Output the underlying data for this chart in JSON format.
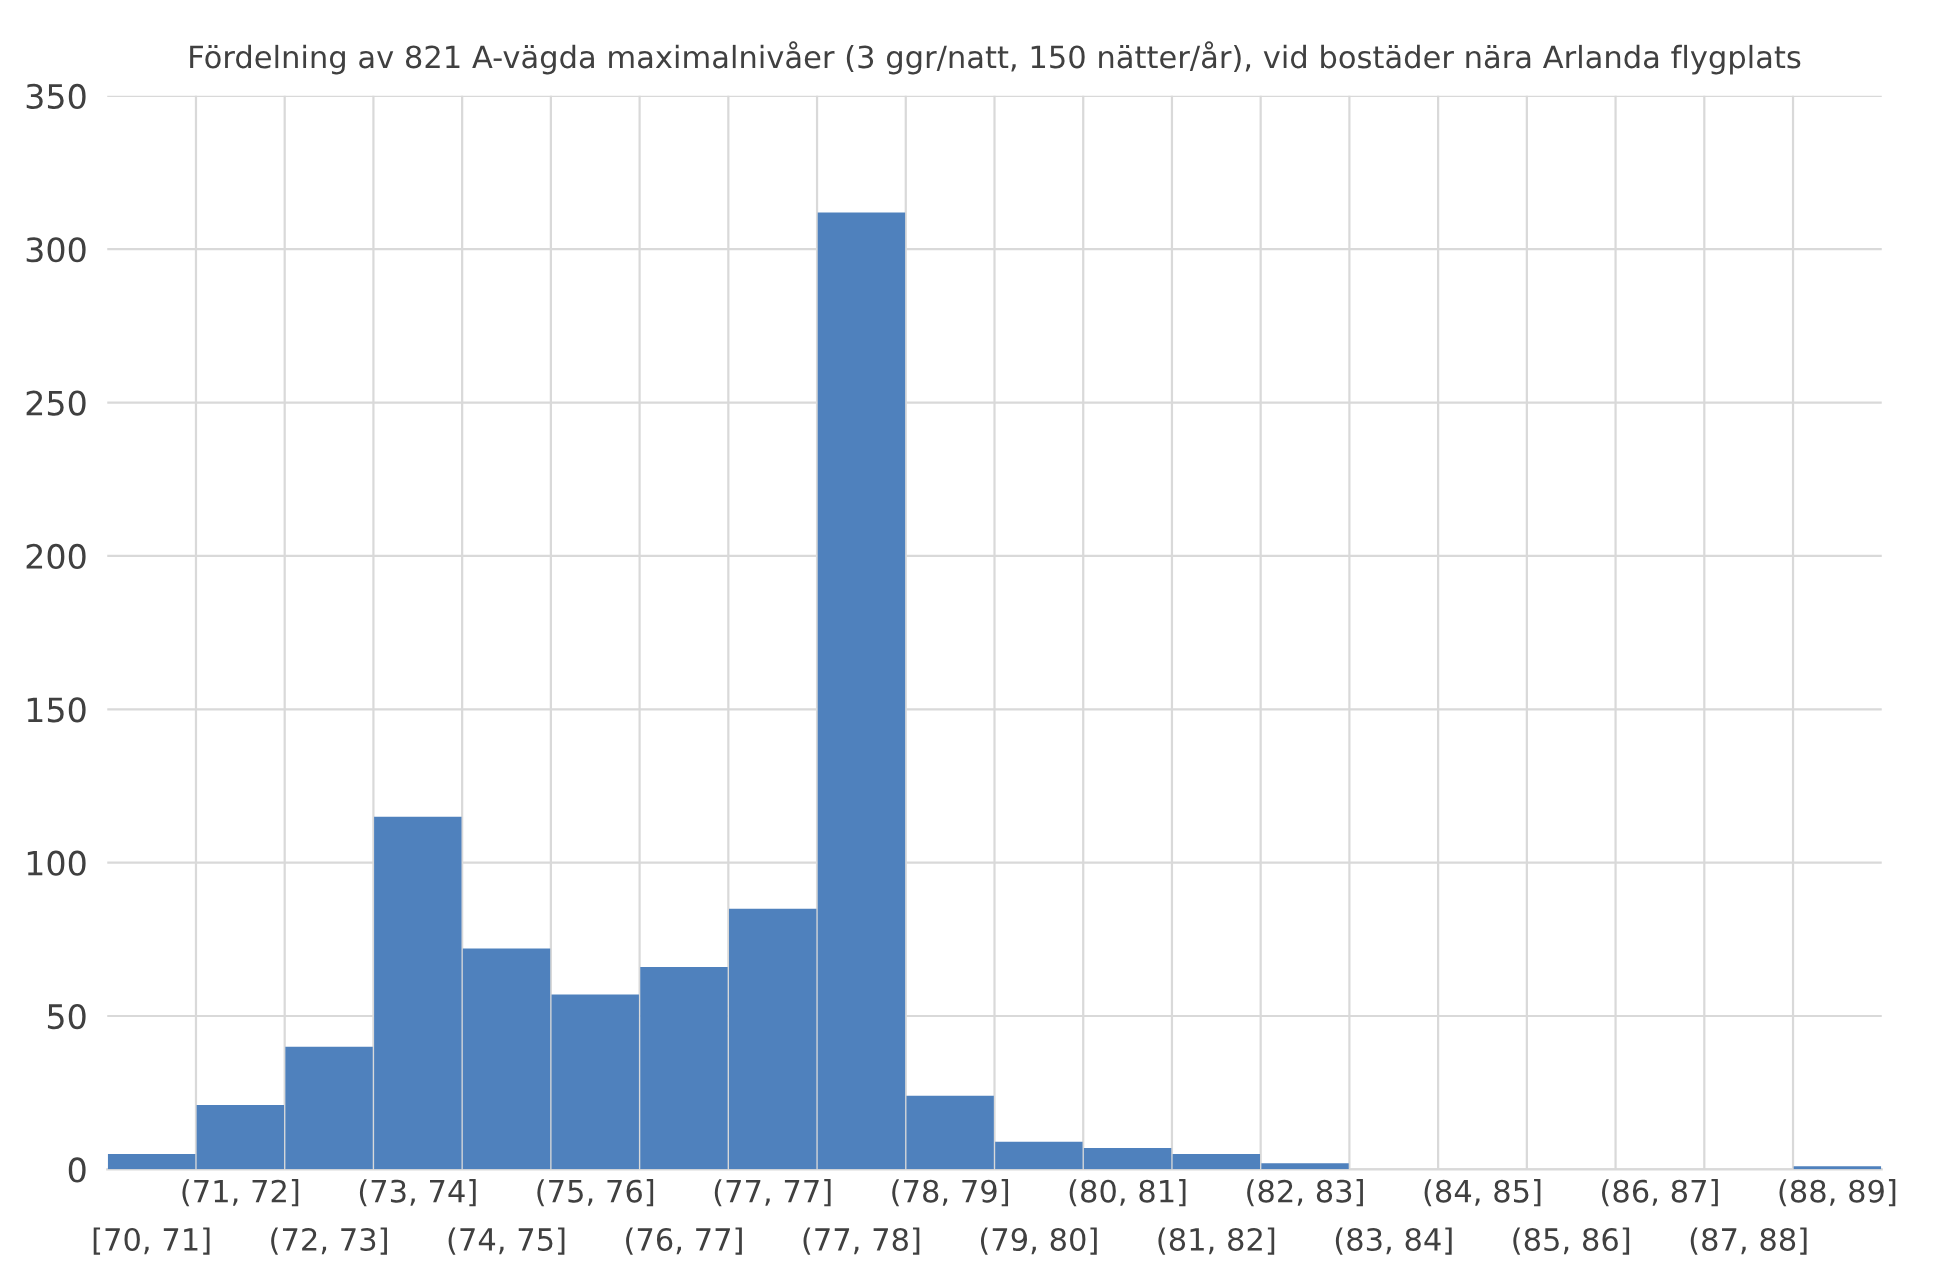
{
  "chart_data": {
    "type": "bar",
    "title": "Fördelning av 821 A-vägda maximalnivåer (3 ggr/natt, 150 nätter/år), vid bostäder nära Arlanda flygplats",
    "categories": [
      "[70, 71]",
      "(71, 72]",
      "(72, 73]",
      "(73, 74]",
      "(74, 75]",
      "(75, 76]",
      "(76, 77]",
      "(77, 77]",
      "(77, 78]",
      "(78, 79]",
      "(79, 80]",
      "(80, 81]",
      "(81, 82]",
      "(82, 83]",
      "(83, 84]",
      "(84, 85]",
      "(85, 86]",
      "(86, 87]",
      "(87, 88]",
      "(88, 89]"
    ],
    "values": [
      5,
      21,
      40,
      115,
      72,
      57,
      66,
      85,
      312,
      24,
      9,
      7,
      5,
      2,
      0,
      0,
      0,
      0,
      0,
      1
    ],
    "color": "#4f81bd",
    "ylim": [
      0,
      350
    ],
    "yticks": [
      0,
      50,
      100,
      150,
      200,
      250,
      300,
      350
    ],
    "grid": true,
    "legend": false
  }
}
